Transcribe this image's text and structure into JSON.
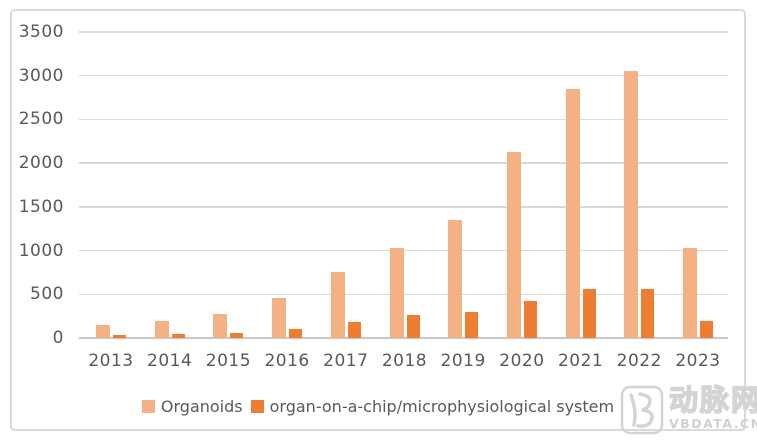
{
  "colors": {
    "organoids_bar": "#F4B183",
    "chip_bar": "#ED7D31",
    "gridline": "#D9D9D9",
    "axis_line": "#C9C9C9",
    "tick_text": "#595959",
    "frame_border": "#D9D9D9",
    "watermark": "#D4D4D4"
  },
  "chart_data": {
    "type": "bar",
    "categories": [
      "2013",
      "2014",
      "2015",
      "2016",
      "2017",
      "2018",
      "2019",
      "2020",
      "2021",
      "2022",
      "2023"
    ],
    "series": [
      {
        "name": "Organoids",
        "color": "#F4B183",
        "values": [
          150,
          190,
          280,
          460,
          760,
          1030,
          1350,
          2130,
          2850,
          3050,
          1030
        ]
      },
      {
        "name": "organ-on-a-chip/microphysiological system",
        "color": "#ED7D31",
        "values": [
          40,
          45,
          60,
          105,
          180,
          260,
          300,
          420,
          560,
          560,
          200
        ]
      }
    ],
    "title": "",
    "xlabel": "",
    "ylabel": "",
    "ylim": [
      0,
      3500
    ],
    "yticks": [
      0,
      500,
      1000,
      1500,
      2000,
      2500,
      3000,
      3500
    ],
    "grid": true,
    "legend_position": "bottom"
  },
  "watermark": {
    "logo": "vbdata-logo",
    "brand_cn": "动脉网",
    "brand_url": "VBDATA.CN"
  }
}
